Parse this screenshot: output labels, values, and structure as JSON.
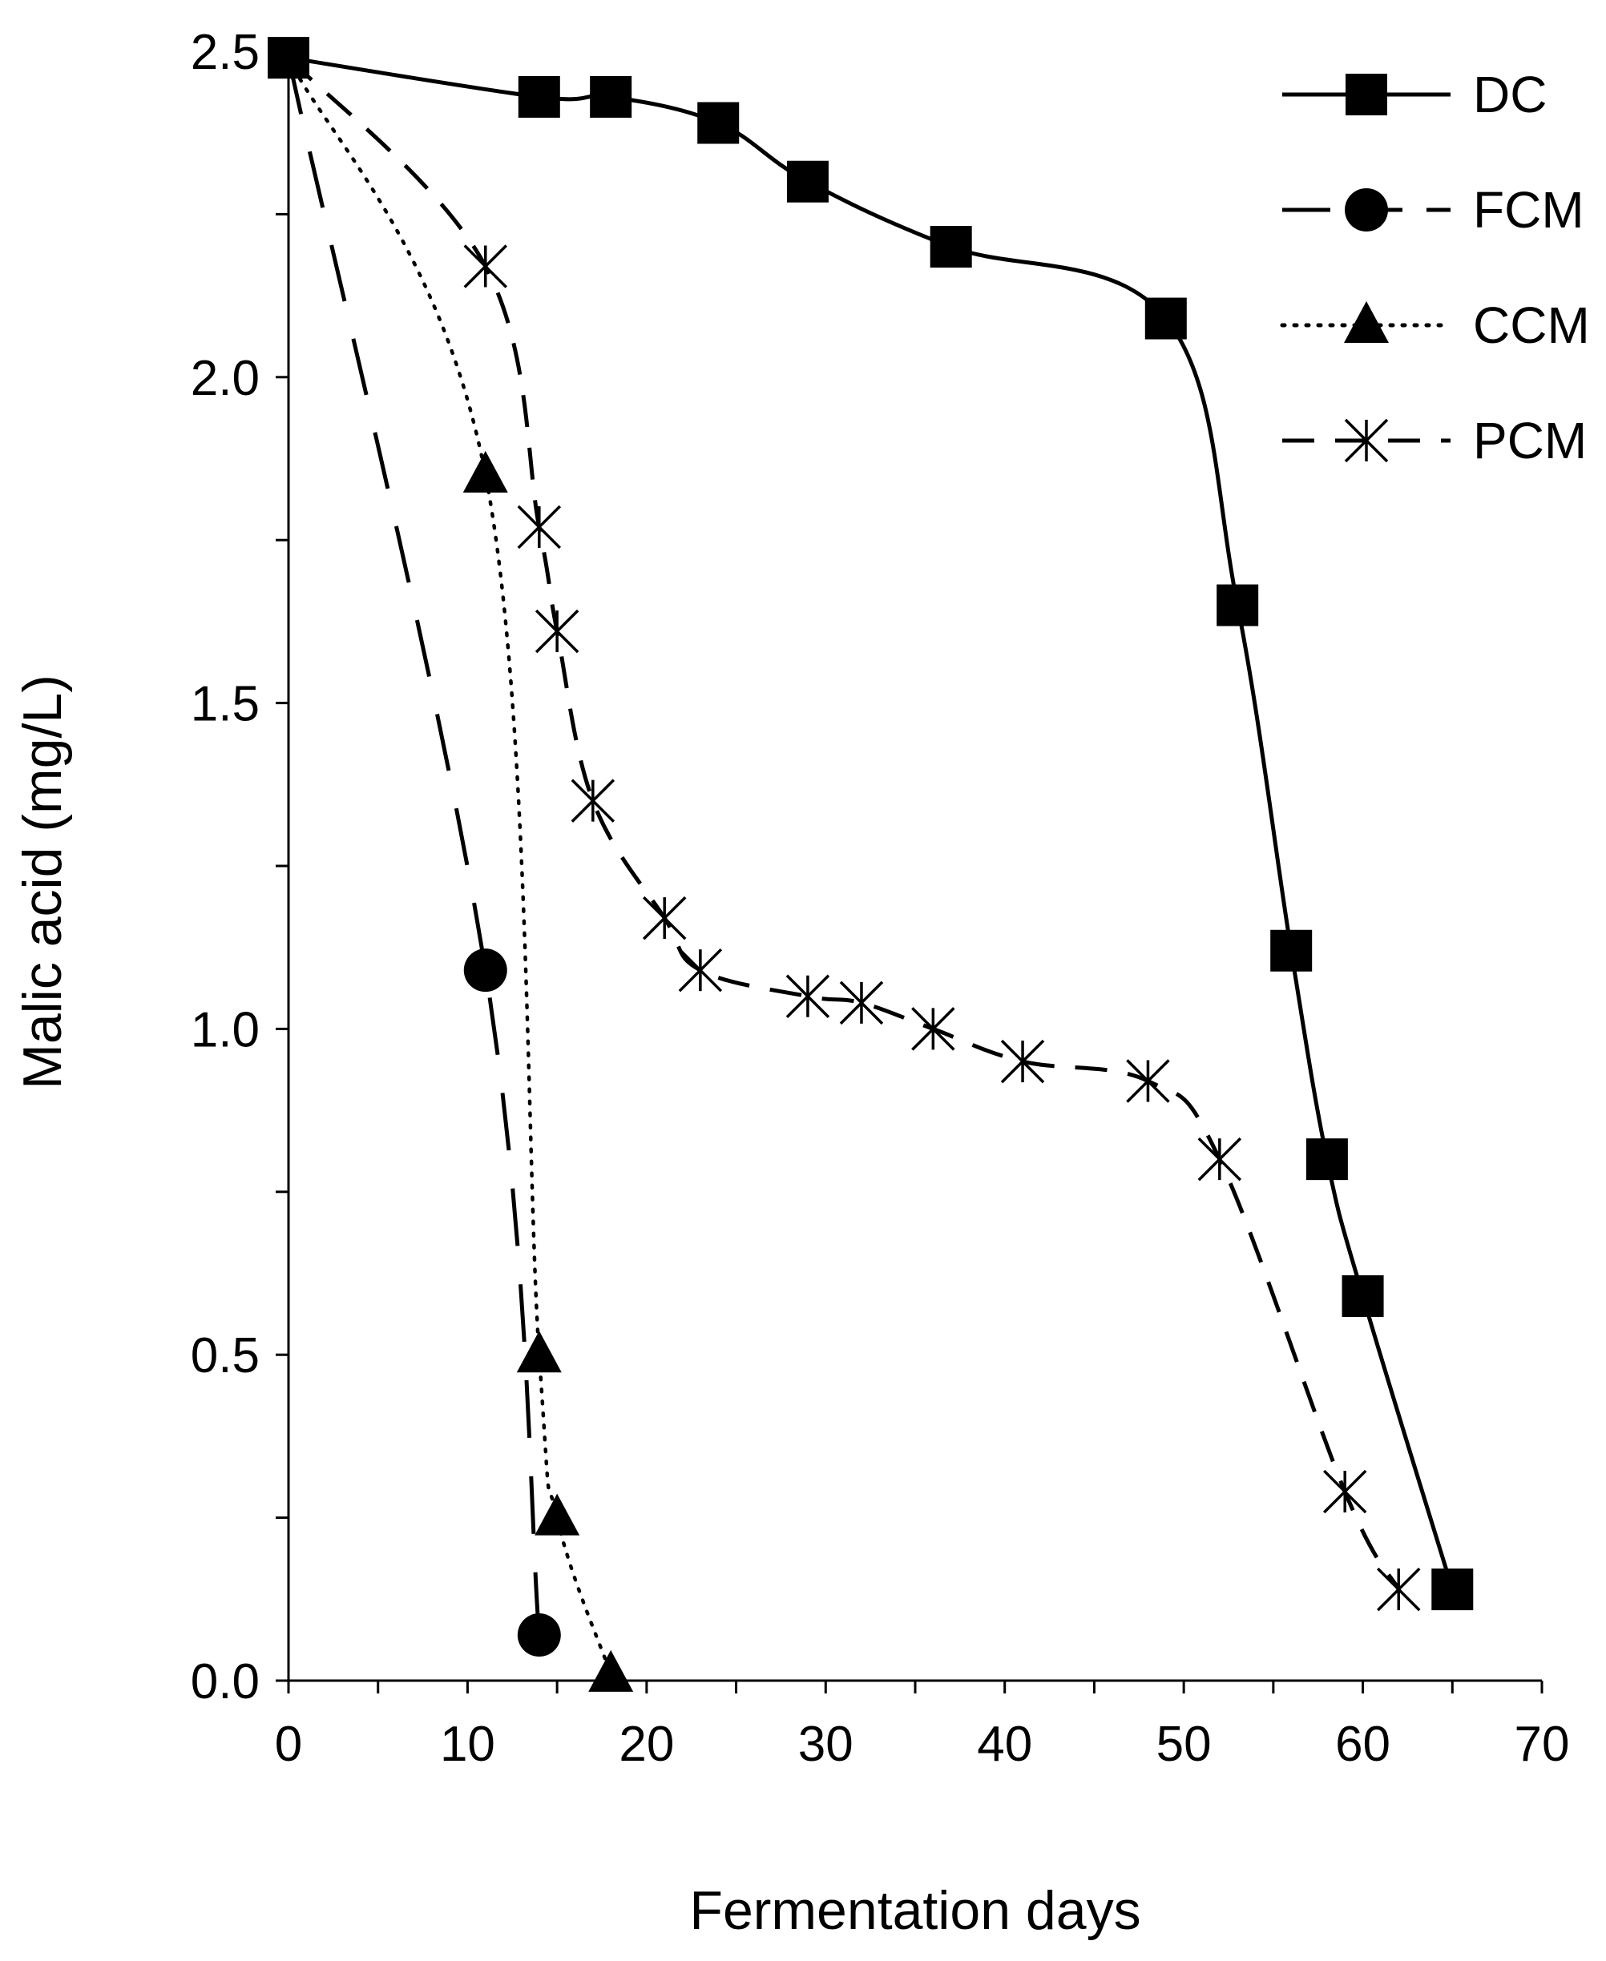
{
  "chart_data": {
    "type": "line",
    "title": "",
    "xlabel": "Fermentation days",
    "ylabel": "Malic acid (mg/L)",
    "xlim": [
      0,
      70
    ],
    "ylim": [
      0,
      2.5
    ],
    "x_ticks": [
      {
        "value": 0,
        "label": "0"
      },
      {
        "value": 10,
        "label": "10"
      },
      {
        "value": 20,
        "label": "20"
      },
      {
        "value": 30,
        "label": "30"
      },
      {
        "value": 40,
        "label": "40"
      },
      {
        "value": 50,
        "label": "50"
      },
      {
        "value": 60,
        "label": "60"
      },
      {
        "value": 70,
        "label": "70"
      }
    ],
    "x_minor_step": 5,
    "y_ticks": [
      {
        "value": 0,
        "label": "0.0"
      },
      {
        "value": 0.5,
        "label": "0.5"
      },
      {
        "value": 1.0,
        "label": "1.0"
      },
      {
        "value": 1.5,
        "label": "1.5"
      },
      {
        "value": 2.0,
        "label": "2.0"
      },
      {
        "value": 2.5,
        "label": "2.5"
      }
    ],
    "y_minor_step": 0.25,
    "grid": false,
    "legend_position": "top-right",
    "series": [
      {
        "name": "DC",
        "marker": "square",
        "line_style": "solid",
        "points": [
          [
            0,
            2.49
          ],
          [
            14,
            2.43
          ],
          [
            18,
            2.43
          ],
          [
            24,
            2.39
          ],
          [
            29,
            2.3
          ],
          [
            37,
            2.2
          ],
          [
            49,
            2.09
          ],
          [
            53,
            1.65
          ],
          [
            56,
            1.12
          ],
          [
            58,
            0.8
          ],
          [
            60,
            0.59
          ],
          [
            65,
            0.14
          ]
        ]
      },
      {
        "name": "FCM",
        "marker": "circle",
        "line_style": "longdash",
        "points": [
          [
            0,
            2.49
          ],
          [
            11,
            1.09
          ],
          [
            14,
            0.07
          ]
        ]
      },
      {
        "name": "CCM",
        "marker": "triangle",
        "line_style": "dotted",
        "points": [
          [
            0,
            2.49
          ],
          [
            11,
            1.85
          ],
          [
            14,
            0.5
          ],
          [
            15,
            0.25
          ],
          [
            18,
            0.01
          ]
        ]
      },
      {
        "name": "PCM",
        "marker": "asterisk",
        "line_style": "dashed",
        "points": [
          [
            0,
            2.49
          ],
          [
            11,
            2.17
          ],
          [
            14,
            1.77
          ],
          [
            15,
            1.61
          ],
          [
            17,
            1.35
          ],
          [
            21,
            1.17
          ],
          [
            23,
            1.09
          ],
          [
            29,
            1.05
          ],
          [
            32,
            1.04
          ],
          [
            36,
            1.0
          ],
          [
            41,
            0.95
          ],
          [
            48,
            0.92
          ],
          [
            52,
            0.8
          ],
          [
            59,
            0.29
          ],
          [
            62,
            0.14
          ]
        ]
      }
    ]
  }
}
